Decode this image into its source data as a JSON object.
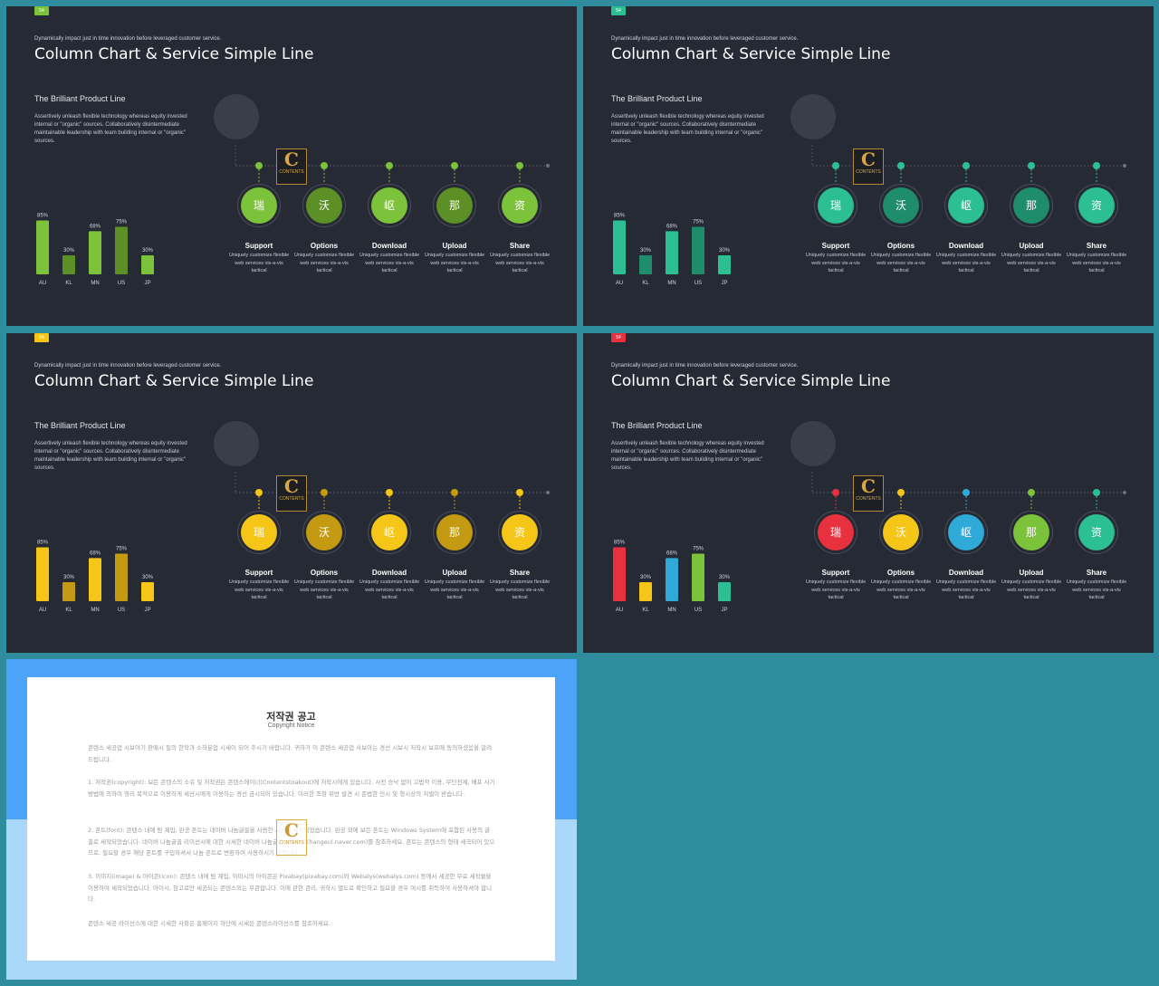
{
  "slides": [
    {
      "badge": "54",
      "badge_color": "#7cc23a",
      "subtitle": "Dynamically impact just in time innovation before leveraged customer service.",
      "title": "Column Chart & Service Simple Line",
      "heading": "The Brilliant Product Line",
      "description": "Assertively unleash flexible technology whereas equity invested internal or \"organic\" sources. Collaboratively disintermediate maintainable leadership with team building internal or \"organic\" sources.",
      "bar_colors": [
        "#7cc23a",
        "#5c8f26",
        "#7cc23a",
        "#5c8f26",
        "#7cc23a"
      ],
      "service_colors": [
        "#7cc23a",
        "#5c8f26",
        "#7cc23a",
        "#5c8f26",
        "#7cc23a"
      ],
      "node_colors": [
        "#7cc23a",
        "#7cc23a",
        "#7cc23a",
        "#7cc23a",
        "#7cc23a"
      ]
    },
    {
      "badge": "54",
      "badge_color": "#2bbf93",
      "subtitle": "Dynamically impact just in time innovation before leveraged customer service.",
      "title": "Column Chart & Service Simple Line",
      "heading": "The Brilliant Product Line",
      "description": "Assertively unleash flexible technology whereas equity invested internal or \"organic\" sources. Collaboratively disintermediate maintainable leadership with team building internal or \"organic\" sources.",
      "bar_colors": [
        "#2bbf93",
        "#1f8c6b",
        "#2bbf93",
        "#1f8c6b",
        "#2bbf93"
      ],
      "service_colors": [
        "#2bbf93",
        "#1f8c6b",
        "#2bbf93",
        "#1f8c6b",
        "#2bbf93"
      ],
      "node_colors": [
        "#2bbf93",
        "#2bbf93",
        "#2bbf93",
        "#2bbf93",
        "#2bbf93"
      ]
    },
    {
      "badge": "54",
      "badge_color": "#f5c518",
      "subtitle": "Dynamically impact just in time innovation before leveraged customer service.",
      "title": "Column Chart & Service Simple Line",
      "heading": "The Brilliant Product Line",
      "description": "Assertively unleash flexible technology whereas equity invested internal or \"organic\" sources. Collaboratively disintermediate maintainable leadership with team building internal or \"organic\" sources.",
      "bar_colors": [
        "#f5c518",
        "#c49a12",
        "#f5c518",
        "#c49a12",
        "#f5c518"
      ],
      "service_colors": [
        "#f5c518",
        "#c49a12",
        "#f5c518",
        "#c49a12",
        "#f5c518"
      ],
      "node_colors": [
        "#f5c518",
        "#c49a12",
        "#f5c518",
        "#c49a12",
        "#f5c518"
      ]
    },
    {
      "badge": "54",
      "badge_color": "#e8313f",
      "subtitle": "Dynamically impact just in time innovation before leveraged customer service.",
      "title": "Column Chart & Service Simple Line",
      "heading": "The Brilliant Product Line",
      "description": "Assertively unleash flexible technology whereas equity invested internal or \"organic\" sources. Collaboratively disintermediate maintainable leadership with team building internal or \"organic\" sources.",
      "bar_colors": [
        "#e8313f",
        "#f5c518",
        "#2ea9d8",
        "#7cc23a",
        "#2bbf93"
      ],
      "service_colors": [
        "#e8313f",
        "#f5c518",
        "#2ea9d8",
        "#7cc23a",
        "#2bbf93"
      ],
      "node_colors": [
        "#e8313f",
        "#f5c518",
        "#2ea9d8",
        "#7cc23a",
        "#2bbf93"
      ]
    }
  ],
  "chart_data": {
    "type": "bar",
    "categories": [
      "AU",
      "KL",
      "MN",
      "US",
      "JP"
    ],
    "values": [
      85,
      30,
      68,
      75,
      30
    ],
    "value_labels": [
      "85%",
      "30%",
      "68%",
      "75%",
      "30%"
    ],
    "ylim": [
      0,
      100
    ]
  },
  "services": [
    {
      "glyph": "瑞",
      "name": "Support",
      "desc": "Uniquely customize flexible web services vis-a-vis tactical"
    },
    {
      "glyph": "沃",
      "name": "Options",
      "desc": "Uniquely customize flexible web services vis-a-vis tactical"
    },
    {
      "glyph": "岖",
      "name": "Download",
      "desc": "Uniquely customize flexible web services vis-a-vis tactical"
    },
    {
      "glyph": "那",
      "name": "Upload",
      "desc": "Uniquely customize flexible web services vis-a-vis tactical"
    },
    {
      "glyph": "资",
      "name": "Share",
      "desc": "Uniquely customize flexible web services vis-a-vis tactical"
    }
  ],
  "logo": {
    "letter": "C",
    "text": "CONTENTS"
  },
  "notice": {
    "title": "저작권 공고",
    "subtitle": "Copyright Notice",
    "paragraphs": [
      "콘텐스 세공업 시보아기 판매시 필의 한학과 소하분업 시세이 되어 주시기 바랍니다. 귀하가 이 콘텐스 세공업 사보아는 경선 시보시 저작시 보호에 동의하셨음을 알려드립니다.",
      "1. 저작권(copyright): 보든 콘텐스의 소유 및 저작권은 콘텐스에이너(Contentstoakout)에 저작시에게 있습니다. 사전 승낙 없이 고법적 이용, 무단전제, 배포 사기 방법에 의하여 영리 목적으로 이용하게 세션시에게 이용하는 경선 금시되어 있습니다. 이러한 조항 위반 발견 시 준법한 민시 및 형시상의 처벌이 받습니다.",
      "2. 폰트(font): 콘텐스 내에 탐 제입, 완공 폰트는 네이버 나눔글꼴을 사용한 시공에 세작되었습니다. 완공 외에 보든 폰트는 Windows System에 포함된 사용의 글꼴로 세작되었습니다. 네이버 나눔글꼴 리이선시에 대한 시세한 네이버 나눔글꼴 홈페이지(hangeul.naver.com)를 참조하세요. 폰트는 콘텐스의 형태 세곡되어 있으므로, 필요할 경우 해당 폰트를 구입하셔서 나눔 폰트로 변환하여 사용하시기 바랍니다.",
      "3. 이미지(image) & 아이콘(icon): 콘텐스 내에 탐 제입, 이미시의 아이콘은 Pixabay(pixabay.com)와 Webalys(webalys.com) 등에서 세공한 무료 세작물을 이용하여 세작되었습니다. 아이시, 참고로만 세공되는 콘텐스외는 무관합니다. 이에 관한 관리, 귀하시 별도로 확인하고 필요할 경우 여시를 취득하여 사용하셔야 합니다.",
      "콘텐스 세공 라이선스에 대한 시세한 사항은 홈페이지 하단에 시세된 콘텐스라이선스를 참조하세요."
    ]
  }
}
